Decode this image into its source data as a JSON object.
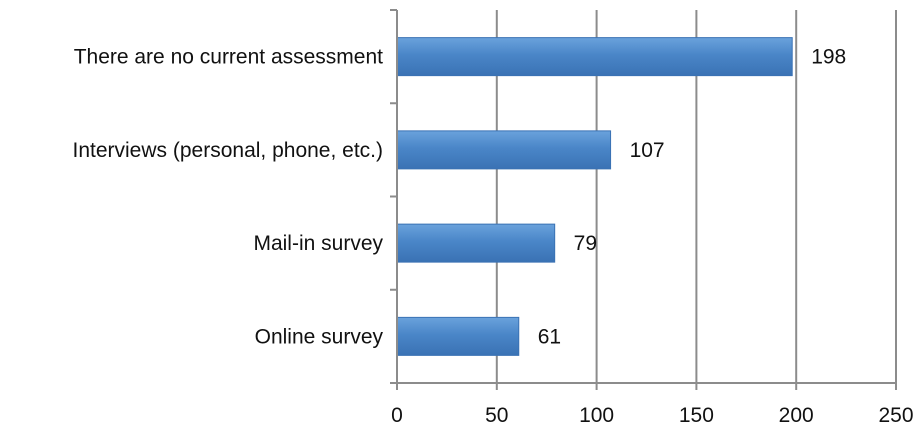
{
  "chart_data": {
    "type": "bar",
    "orientation": "horizontal",
    "categories": [
      "There are no current assessment",
      "Interviews (personal, phone, etc.)",
      "Mail-in survey",
      "Online survey"
    ],
    "values": [
      198,
      107,
      79,
      61
    ],
    "data_labels": [
      "198",
      "107",
      "79",
      "61"
    ],
    "xlim": [
      0,
      250
    ],
    "x_ticks": [
      0,
      50,
      100,
      150,
      200,
      250
    ],
    "x_tick_labels": [
      "0",
      "50",
      "100",
      "150",
      "200",
      "250"
    ],
    "grid": true,
    "legend": "none",
    "colors": {
      "bar": "#4a86c8",
      "bar_light": "#6aa2dc",
      "bar_dark": "#3a72b4",
      "grid": "#8c8c8c",
      "axis": "#8c8c8c"
    }
  }
}
